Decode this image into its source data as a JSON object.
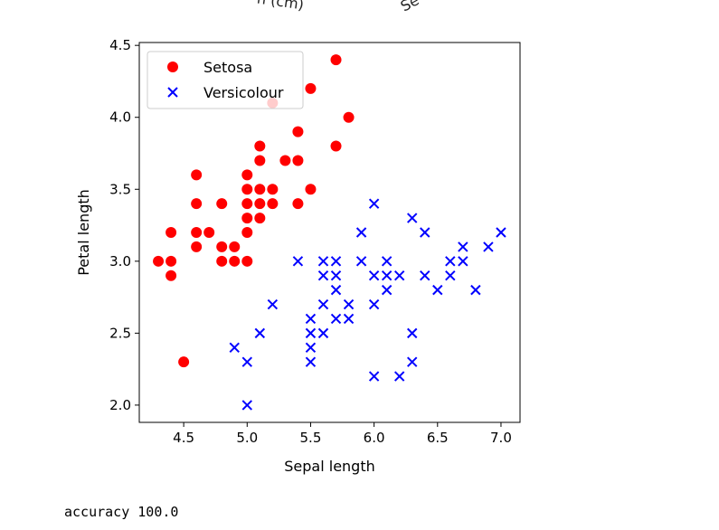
{
  "clipped_labels": {
    "left": "n (cm)",
    "right": "Se"
  },
  "chart_data": {
    "type": "scatter",
    "title": "",
    "xlabel": "Sepal length",
    "ylabel": "Petal length",
    "xlim": [
      4.15,
      7.15
    ],
    "ylim": [
      1.88,
      4.52
    ],
    "xticks": [
      "4.5",
      "5.0",
      "5.5",
      "6.0",
      "6.5",
      "7.0"
    ],
    "yticks": [
      "2.0",
      "2.5",
      "3.0",
      "3.5",
      "4.0",
      "4.5"
    ],
    "legend": "top-left",
    "grid": false,
    "series": [
      {
        "name": "Setosa",
        "marker": "circle",
        "color": "#ff0000",
        "points": [
          [
            5.7,
            4.4
          ],
          [
            5.5,
            4.2
          ],
          [
            5.2,
            4.1
          ],
          [
            5.8,
            4.0
          ],
          [
            5.4,
            3.9
          ],
          [
            5.1,
            3.8
          ],
          [
            5.7,
            3.8
          ],
          [
            5.1,
            3.7
          ],
          [
            5.3,
            3.7
          ],
          [
            5.4,
            3.7
          ],
          [
            4.6,
            3.6
          ],
          [
            5.0,
            3.6
          ],
          [
            5.0,
            3.5
          ],
          [
            5.1,
            3.5
          ],
          [
            5.2,
            3.5
          ],
          [
            5.5,
            3.5
          ],
          [
            4.6,
            3.4
          ],
          [
            4.8,
            3.4
          ],
          [
            5.0,
            3.4
          ],
          [
            5.1,
            3.4
          ],
          [
            5.2,
            3.4
          ],
          [
            5.4,
            3.4
          ],
          [
            5.0,
            3.3
          ],
          [
            5.1,
            3.3
          ],
          [
            4.4,
            3.2
          ],
          [
            4.6,
            3.2
          ],
          [
            4.7,
            3.2
          ],
          [
            5.0,
            3.2
          ],
          [
            4.6,
            3.1
          ],
          [
            4.8,
            3.1
          ],
          [
            4.9,
            3.1
          ],
          [
            4.3,
            3.0
          ],
          [
            4.4,
            3.0
          ],
          [
            4.8,
            3.0
          ],
          [
            4.9,
            3.0
          ],
          [
            5.0,
            3.0
          ],
          [
            4.4,
            2.9
          ],
          [
            4.5,
            2.3
          ]
        ]
      },
      {
        "name": "Versicolour",
        "marker": "x",
        "color": "#0000ff",
        "points": [
          [
            6.0,
            3.4
          ],
          [
            6.3,
            3.3
          ],
          [
            5.9,
            3.2
          ],
          [
            6.4,
            3.2
          ],
          [
            7.0,
            3.2
          ],
          [
            6.7,
            3.1
          ],
          [
            6.9,
            3.1
          ],
          [
            5.4,
            3.0
          ],
          [
            5.6,
            3.0
          ],
          [
            5.7,
            3.0
          ],
          [
            5.9,
            3.0
          ],
          [
            6.1,
            3.0
          ],
          [
            6.6,
            3.0
          ],
          [
            6.7,
            3.0
          ],
          [
            5.6,
            2.9
          ],
          [
            5.7,
            2.9
          ],
          [
            6.0,
            2.9
          ],
          [
            6.1,
            2.9
          ],
          [
            6.2,
            2.9
          ],
          [
            6.4,
            2.9
          ],
          [
            6.6,
            2.9
          ],
          [
            5.7,
            2.8
          ],
          [
            6.1,
            2.8
          ],
          [
            6.5,
            2.8
          ],
          [
            6.8,
            2.8
          ],
          [
            5.2,
            2.7
          ],
          [
            5.6,
            2.7
          ],
          [
            5.8,
            2.7
          ],
          [
            6.0,
            2.7
          ],
          [
            5.5,
            2.6
          ],
          [
            5.7,
            2.6
          ],
          [
            5.8,
            2.6
          ],
          [
            5.1,
            2.5
          ],
          [
            5.5,
            2.5
          ],
          [
            5.6,
            2.5
          ],
          [
            6.3,
            2.5
          ],
          [
            4.9,
            2.4
          ],
          [
            5.5,
            2.4
          ],
          [
            5.0,
            2.3
          ],
          [
            5.5,
            2.3
          ],
          [
            6.3,
            2.3
          ],
          [
            6.0,
            2.2
          ],
          [
            6.2,
            2.2
          ],
          [
            5.0,
            2.0
          ]
        ]
      }
    ]
  },
  "output": {
    "text": "accuracy 100.0"
  }
}
